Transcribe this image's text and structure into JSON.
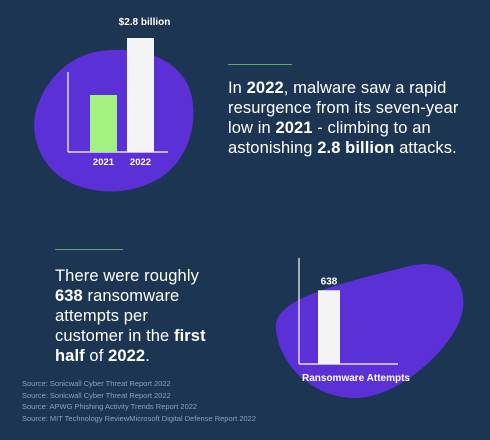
{
  "colors": {
    "background": "#1b3553",
    "blob": "#5b30d6",
    "bar_2021": "#a3f27f",
    "bar_2022": "#f4f4f4",
    "axis": "#ffffff",
    "divider": "#5fa46e",
    "source_text": "#8aa1c4"
  },
  "chart_data": [
    {
      "type": "bar",
      "categories": [
        "2021",
        "2022"
      ],
      "values": [
        1.4,
        2.8
      ],
      "value_labels": [
        "",
        "$2.8 billion"
      ],
      "ylim": [
        0,
        2.8
      ],
      "grid": false
    },
    {
      "type": "bar",
      "categories": [
        ""
      ],
      "values": [
        638
      ],
      "value_labels": [
        "638"
      ],
      "xlabel": "Ransomware Attempts",
      "ylim": [
        0,
        900
      ],
      "grid": false
    }
  ],
  "block1": {
    "t1": "In ",
    "b1": "2022",
    "t2": ", malware saw a rapid resurgence from its seven-year low in ",
    "b2": "2021",
    "t3": " - climbing to an astonishing ",
    "b3": "2.8 billion",
    "t4": " attacks."
  },
  "block2": {
    "t1": "There were roughly ",
    "b1": "638",
    "t2": " ransomware attempts per customer in the ",
    "b2": "first half",
    "t3": " of ",
    "b3": "2022",
    "t4": "."
  },
  "sources": [
    "Source: Sonicwall Cyber Threat Report 2022",
    "Source: Sonicwall Cyber Threat Report 2022",
    "Source: APWG Phishing Activity Trends Report 2022",
    "Source: MIT Technology ReviewMicrosoft Digital Defense Report 2022"
  ]
}
